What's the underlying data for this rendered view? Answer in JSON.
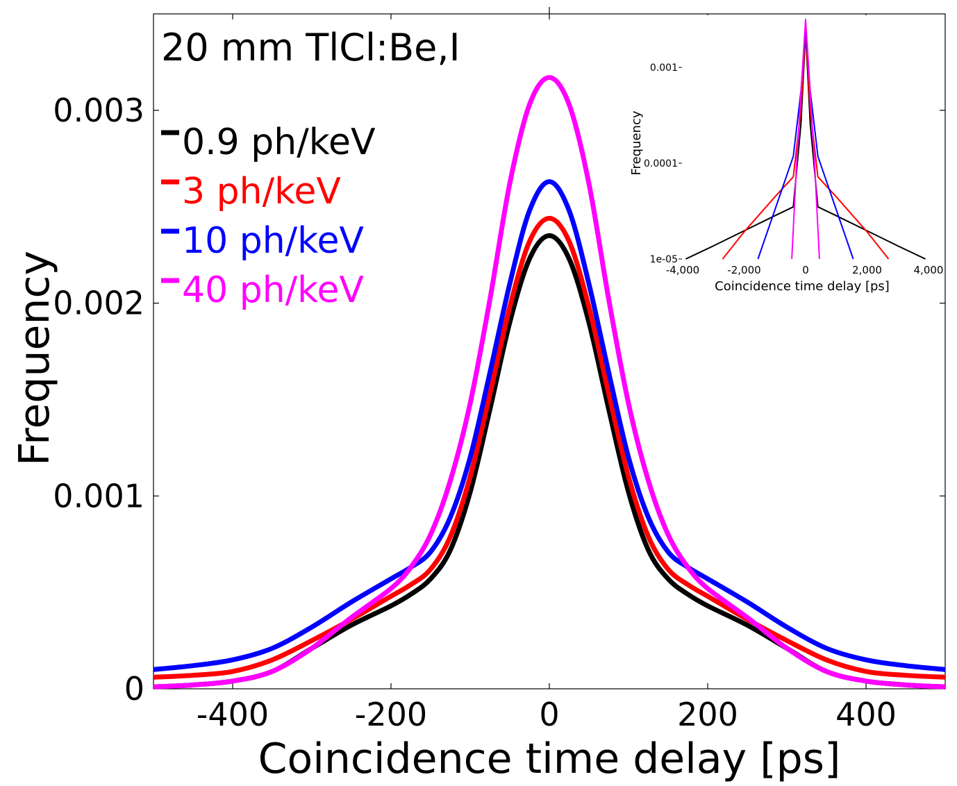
{
  "chart_data": [
    {
      "type": "line",
      "title": "20 mm TlCl:Be,I",
      "xlabel": "Coincidence time delay [ps]",
      "ylabel": "Frequency",
      "xlim": [
        -500,
        500
      ],
      "ylim": [
        0,
        0.0035
      ],
      "xticks": [
        -400,
        -200,
        0,
        200,
        400
      ],
      "xtick_labels": [
        "-400",
        "-200",
        "0",
        "200",
        "400"
      ],
      "yticks": [
        0,
        0.001,
        0.002,
        0.003
      ],
      "ytick_labels": [
        "0",
        "0.001",
        "0.002",
        "0.003"
      ],
      "legend_position": "top-left",
      "series": [
        {
          "name": "0.9 ph/keV",
          "color": "#000000",
          "x": [
            -500,
            -450,
            -400,
            -350,
            -300,
            -250,
            -200,
            -175,
            -150,
            -125,
            -100,
            -75,
            -50,
            -25,
            0,
            25,
            50,
            75,
            100,
            125,
            150,
            175,
            200,
            250,
            300,
            350,
            400,
            450,
            500
          ],
          "values": [
            1e-05,
            2e-05,
            4e-05,
            9e-05,
            0.00021,
            0.00033,
            0.00043,
            0.00049,
            0.00057,
            0.00072,
            0.00102,
            0.00145,
            0.0019,
            0.00223,
            0.00235,
            0.00223,
            0.0019,
            0.00145,
            0.00102,
            0.00072,
            0.00057,
            0.00049,
            0.00043,
            0.00033,
            0.00021,
            9e-05,
            4e-05,
            2e-05,
            1e-05
          ]
        },
        {
          "name": "3 ph/keV",
          "color": "#ff0000",
          "x": [
            -500,
            -450,
            -400,
            -350,
            -300,
            -250,
            -200,
            -175,
            -150,
            -125,
            -100,
            -75,
            -50,
            -25,
            0,
            25,
            50,
            75,
            100,
            125,
            150,
            175,
            200,
            250,
            300,
            350,
            400,
            450,
            500
          ],
          "values": [
            6e-05,
            7e-05,
            9e-05,
            0.00015,
            0.00025,
            0.00036,
            0.00048,
            0.00054,
            0.00062,
            0.00079,
            0.0011,
            0.00153,
            0.00198,
            0.00232,
            0.00244,
            0.00232,
            0.00198,
            0.00153,
            0.0011,
            0.00079,
            0.00062,
            0.00054,
            0.00048,
            0.00036,
            0.00025,
            0.00015,
            9e-05,
            7e-05,
            6e-05
          ]
        },
        {
          "name": "10 ph/keV",
          "color": "#0000ff",
          "x": [
            -500,
            -450,
            -400,
            -350,
            -300,
            -250,
            -200,
            -175,
            -150,
            -125,
            -100,
            -75,
            -50,
            -25,
            0,
            25,
            50,
            75,
            100,
            125,
            150,
            175,
            200,
            250,
            300,
            350,
            400,
            450,
            500
          ],
          "values": [
            0.0001,
            0.00012,
            0.00015,
            0.00021,
            0.00032,
            0.00045,
            0.00057,
            0.00063,
            0.00071,
            0.00089,
            0.0012,
            0.00164,
            0.0021,
            0.00248,
            0.00263,
            0.00248,
            0.0021,
            0.00164,
            0.0012,
            0.00089,
            0.00071,
            0.00063,
            0.00057,
            0.00045,
            0.00032,
            0.00021,
            0.00015,
            0.00012,
            0.0001
          ]
        },
        {
          "name": "40 ph/keV",
          "color": "#ff00ff",
          "x": [
            -500,
            -450,
            -400,
            -350,
            -300,
            -250,
            -200,
            -175,
            -150,
            -125,
            -100,
            -75,
            -50,
            -25,
            0,
            25,
            50,
            75,
            100,
            125,
            150,
            175,
            200,
            250,
            300,
            350,
            400,
            450,
            500
          ],
          "values": [
            1e-05,
            2e-05,
            4e-05,
            9e-05,
            0.00021,
            0.00037,
            0.00052,
            0.00063,
            0.0008,
            0.00108,
            0.00148,
            0.00202,
            0.00262,
            0.00303,
            0.00317,
            0.00303,
            0.00262,
            0.00202,
            0.00148,
            0.00108,
            0.0008,
            0.00063,
            0.00052,
            0.00037,
            0.00021,
            9e-05,
            4e-05,
            2e-05,
            1e-05
          ]
        }
      ]
    },
    {
      "type": "line",
      "title": "",
      "xlabel": "Coincidence time delay [ps]",
      "ylabel": "Frequency",
      "yscale": "log",
      "xlim": [
        -4000,
        4000
      ],
      "ylim": [
        1e-05,
        0.0035
      ],
      "xticks": [
        -4000,
        -2000,
        0,
        2000,
        4000
      ],
      "xtick_labels": [
        "-4,000",
        "-2,000",
        "0",
        "2,000",
        "4,000"
      ],
      "yticks": [
        1e-05,
        0.0001,
        0.001
      ],
      "ytick_labels": [
        "1e-05",
        "0.0001",
        "0.001"
      ],
      "series": [
        {
          "name": "0.9 ph/keV",
          "color": "#000000",
          "x": [
            -3900,
            -3000,
            -2000,
            -1000,
            -400,
            -150,
            0,
            150,
            400,
            1000,
            2000,
            3000,
            3900
          ],
          "values": [
            1e-05,
            1.37e-05,
            1.97e-05,
            2.83e-05,
            3.5e-05,
            0.00026,
            0.00235,
            0.00026,
            3.5e-05,
            2.83e-05,
            1.97e-05,
            1.37e-05,
            1e-05
          ]
        },
        {
          "name": "3 ph/keV",
          "color": "#ff0000",
          "x": [
            -2700,
            -2000,
            -1000,
            -400,
            -150,
            0,
            150,
            400,
            1000,
            2000,
            2700
          ],
          "values": [
            1e-05,
            1.92e-05,
            4.45e-05,
            7.2e-05,
            0.00036,
            0.00244,
            0.00036,
            7.2e-05,
            4.45e-05,
            1.92e-05,
            1e-05
          ]
        },
        {
          "name": "10 ph/keV",
          "color": "#0000ff",
          "x": [
            -1550,
            -1000,
            -400,
            -150,
            0,
            150,
            400,
            1000,
            1550
          ],
          "values": [
            1e-05,
            3.25e-05,
            0.000118,
            0.00057,
            0.00263,
            0.00057,
            0.000118,
            3.25e-05,
            1e-05
          ]
        },
        {
          "name": "40 ph/keV",
          "color": "#ff00ff",
          "x": [
            -450,
            -300,
            -150,
            0,
            150,
            300,
            450
          ],
          "values": [
            1e-05,
            9e-05,
            0.00055,
            0.00317,
            0.00055,
            9e-05,
            1e-05
          ]
        }
      ]
    }
  ]
}
